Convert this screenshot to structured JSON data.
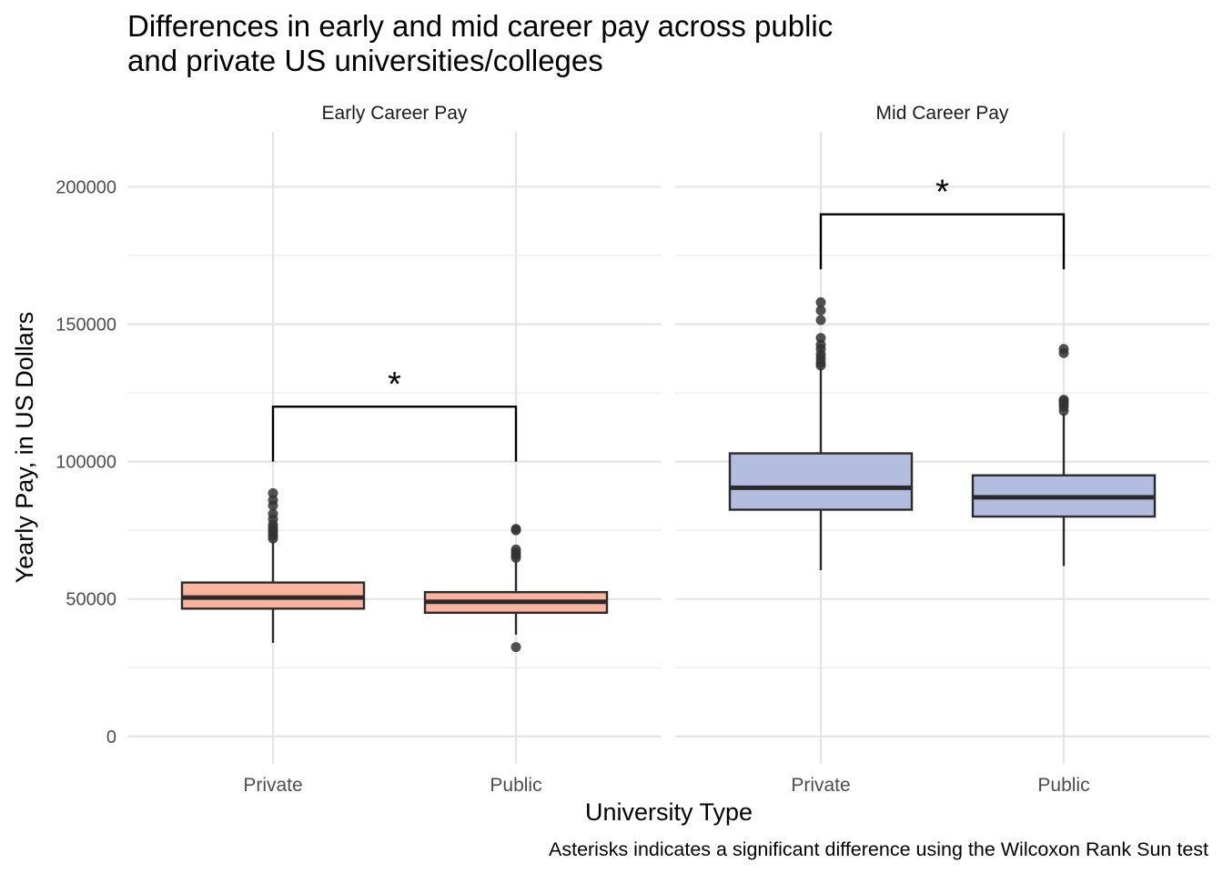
{
  "chart_data": {
    "type": "boxplot",
    "title_lines": [
      "Differences in early and mid career pay across public",
      "and private US universities/colleges"
    ],
    "xlabel": "University Type",
    "ylabel": "Yearly Pay, in US Dollars",
    "caption": "Asterisks indicates a significant difference using the Wilcoxon Rank Sun test",
    "ylim": [
      -10000,
      220000
    ],
    "yticks": [
      0,
      50000,
      100000,
      150000,
      200000
    ],
    "ytick_labels": [
      "0",
      "50000",
      "100000",
      "150000",
      "200000"
    ],
    "categories": [
      "Private",
      "Public"
    ],
    "grid": true,
    "legend": "none",
    "panels": [
      {
        "name": "Early Career Pay",
        "fill": "#fcb49f",
        "boxes": [
          {
            "category": "Private",
            "whisker_low": 34000,
            "q1": 46500,
            "median": 50500,
            "q3": 56000,
            "whisker_high": 71000,
            "outliers": [
              72000,
              73000,
              74000,
              75000,
              76000,
              77000,
              79000,
              81000,
              84000,
              86000,
              88500
            ]
          },
          {
            "category": "Public",
            "whisker_low": 37000,
            "q1": 45000,
            "median": 49000,
            "q3": 52500,
            "whisker_high": 64000,
            "outliers": [
              32500,
              65000,
              66000,
              67000,
              68000,
              75000,
              75500
            ]
          }
        ],
        "significance": {
          "label": "*",
          "y": 120000,
          "leg_bottom": 100000
        }
      },
      {
        "name": "Mid Career Pay",
        "fill": "#b3bddf",
        "boxes": [
          {
            "category": "Private",
            "whisker_low": 60500,
            "q1": 82500,
            "median": 90500,
            "q3": 103000,
            "whisker_high": 134000,
            "outliers": [
              135000,
              136000,
              137500,
              139000,
              141000,
              142500,
              145000,
              151500,
              155000,
              158000
            ]
          },
          {
            "category": "Public",
            "whisker_low": 62000,
            "q1": 80000,
            "median": 87000,
            "q3": 95000,
            "whisker_high": 117500,
            "outliers": [
              118500,
              120000,
              121000,
              122000,
              122500,
              139500,
              141000
            ]
          }
        ],
        "significance": {
          "label": "*",
          "y": 190000,
          "leg_bottom": 170000
        }
      }
    ]
  }
}
